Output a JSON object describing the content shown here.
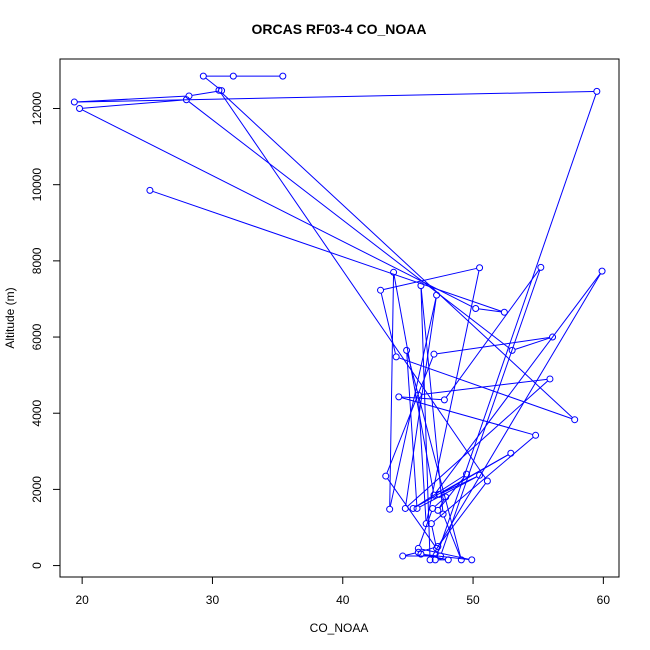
{
  "chart_data": {
    "type": "line",
    "markers": "open-circle",
    "title": "ORCAS RF03-4 CO_NOAA",
    "xlabel": "CO_NOAA",
    "ylabel": "Altitude (m)",
    "xlim": [
      18.3,
      61.2
    ],
    "ylim": [
      -300,
      13300
    ],
    "xticks": [
      20,
      30,
      40,
      50,
      60
    ],
    "yticks": [
      0,
      2000,
      4000,
      6000,
      8000,
      10000,
      12000
    ],
    "series_color": "#0000ff",
    "grid": false,
    "legend": "none",
    "series": [
      {
        "x": [
          35.4,
          31.6,
          29.3,
          30.7,
          28.2,
          19.4,
          59.5,
          47.1,
          48.1,
          46.0,
          49.9,
          45.8,
          46.9,
          47.9,
          47.3,
          49.5,
          45.4,
          52.9,
          47.4,
          50.5,
          45.7,
          44.9,
          49.1,
          47.7,
          46.0,
          46.7,
          59.9,
          47.0,
          43.9,
          43.6,
          47.2,
          44.8,
          55.9,
          45.8,
          46.4,
          50.5,
          42.9,
          44.1,
          57.8,
          30.5,
          51.1,
          47.3,
          45.8,
          44.6,
          47.5,
          55.2,
          47.8,
          44.3,
          54.8,
          46.8,
          47.2,
          43.3,
          47.0,
          56.1,
          53.0,
          28.0,
          19.8,
          50.2,
          52.4,
          25.2
        ],
        "y": [
          12850,
          12850,
          12850,
          12470,
          12330,
          12170,
          12450,
          150,
          150,
          300,
          150,
          450,
          1500,
          1800,
          1450,
          2400,
          1500,
          2950,
          1870,
          2370,
          1500,
          5650,
          150,
          1350,
          7350,
          150,
          7730,
          1850,
          7700,
          1480,
          7100,
          1500,
          4900,
          4480,
          1100,
          7820,
          7230,
          5480,
          3830,
          12480,
          2220,
          500,
          350,
          250,
          250,
          7830,
          4350,
          4430,
          3420,
          1100,
          450,
          2350,
          5550,
          6000,
          5650,
          12230,
          12000,
          6750,
          6650,
          9850
        ]
      }
    ]
  }
}
